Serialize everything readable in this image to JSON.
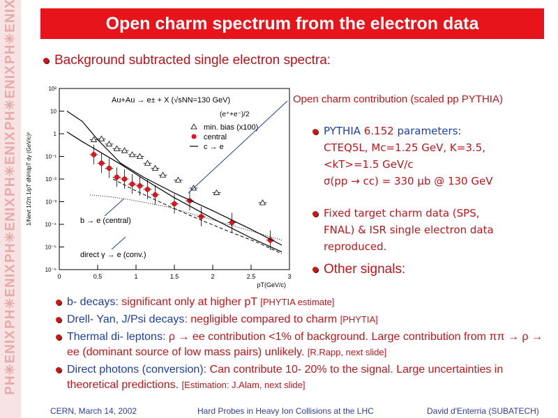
{
  "sidebar": {
    "brand_text": "PH✳ENIX"
  },
  "title": "Open charm spectrum from the electron data",
  "subtitle": "Background subtracted single electron spectra:",
  "plot_annotation": "Open charm contribution (scaled pp PYTHIA)",
  "pythia": {
    "line1_a": "PYTHIA ",
    "line1_b": "6.152",
    "line1_c": " parameters:",
    "line2": "CTEQ5L, Mc=1.25 GeV, K=3.5,",
    "line3": "<kT>=1.5 GeV/c",
    "line4": "σ(pp → cc) = 330 μb @ 130 GeV"
  },
  "fixed_target": {
    "line1": "Fixed target charm data (SPS,",
    "line2": "FNAL) & ISR single electron data",
    "line3": "reproduced."
  },
  "other_signals": "Other signals:",
  "items": [
    {
      "blue": "b- decays",
      "text": ": significant only at higher pT ",
      "note": "[PHYTIA estimate]"
    },
    {
      "blue": "Drell- Yan, J/Psi decays",
      "text": ": negligible compared to charm ",
      "note": "[PHYTIA]"
    },
    {
      "blue": "Thermal di- leptons",
      "text": ": ρ → ee contribution <1% of background. Large contribution from ππ → ρ → ee (dominant source of low mass pairs) unlikely. ",
      "note": "[R.Rapp, next slide]"
    },
    {
      "blue": "Direct photons (conversion)",
      "text": ": Can contribute 10- 20% to the signal. Large uncertainties in theoretical predictions. ",
      "note": "[Estimation: J.Alam, next slide]"
    }
  ],
  "footer": {
    "left": "CERN, March 14, 2002",
    "center": "Hard Probes in Heavy Ion Collisions at the LHC",
    "right": "David d'Enterria (SUBATECH)"
  },
  "chart_data": {
    "type": "scatter",
    "title": "Au+Au → e± + X (√sNN=130 GeV)",
    "ylabel": "1/Nevt 1/2π 1/pT dN²/dpT dy (GeV/c)²",
    "xlabel": "pT(GeV/c)",
    "xlim": [
      0,
      3
    ],
    "ylim_log10": [
      -6,
      2
    ],
    "log_y": true,
    "x_ticks": [
      {
        "v": 0,
        "t": "0"
      },
      {
        "v": 0.5,
        "t": "0.5"
      },
      {
        "v": 1,
        "t": "1"
      },
      {
        "v": 1.5,
        "t": "1.5"
      },
      {
        "v": 2,
        "t": "2"
      },
      {
        "v": 2.5,
        "t": "2.5"
      },
      {
        "v": 3,
        "t": "3"
      }
    ],
    "y_ticks": [
      {
        "e": 2,
        "t": "10²"
      },
      {
        "e": 1,
        "t": "10"
      },
      {
        "e": 0,
        "t": "1"
      },
      {
        "e": -1,
        "t": "10⁻¹"
      },
      {
        "e": -2,
        "t": "10⁻²"
      },
      {
        "e": -3,
        "t": "10⁻³"
      },
      {
        "e": -4,
        "t": "10⁻⁴"
      },
      {
        "e": -5,
        "t": "10⁻⁵"
      },
      {
        "e": -6,
        "t": "10⁻⁶"
      }
    ],
    "legend": {
      "header": "(e⁺+e⁻)/2",
      "entries": [
        "min. bias (x100)",
        "central",
        "c → e"
      ]
    },
    "series": [
      {
        "name": "min. bias (x100)",
        "marker": "open-triangle",
        "x": [
          0.45,
          0.55,
          0.65,
          0.75,
          0.85,
          0.95,
          1.05,
          1.15,
          1.25,
          1.35,
          1.55,
          1.75,
          2.05,
          2.65
        ],
        "y": [
          0.55,
          0.6,
          0.35,
          0.22,
          0.18,
          0.12,
          0.1,
          0.05,
          0.03,
          0.015,
          0.009,
          0.004,
          0.0025,
          0.0009
        ]
      },
      {
        "name": "central",
        "marker": "filled-circle",
        "x": [
          0.45,
          0.55,
          0.65,
          0.75,
          0.85,
          0.95,
          1.05,
          1.15,
          1.25,
          1.5,
          1.7,
          1.85,
          2.25,
          2.75
        ],
        "y": [
          0.12,
          0.05,
          0.03,
          0.012,
          0.01,
          0.006,
          0.005,
          0.0035,
          0.002,
          0.0008,
          0.0011,
          0.00022,
          0.00012,
          2e-05
        ]
      },
      {
        "name": "c → e",
        "style": "solid",
        "x": [
          0.1,
          0.3,
          0.5,
          0.8,
          1.1,
          1.5,
          2.0,
          2.5,
          2.9
        ],
        "y": [
          1.2,
          0.45,
          0.18,
          0.045,
          0.01,
          0.0015,
          0.00018,
          2.5e-05,
          6e-06
        ]
      },
      {
        "name": "curve-2",
        "style": "solid",
        "x": [
          0.1,
          0.3,
          0.5,
          0.8,
          1.1,
          1.5,
          2.0,
          2.5,
          2.9
        ],
        "y": [
          10,
          3.5,
          0.55,
          0.05,
          0.012,
          0.0024,
          0.0004,
          6e-05,
          1.2e-05
        ]
      },
      {
        "name": "b → e",
        "style": "dotted",
        "x": [
          0.4,
          0.7,
          1.0,
          1.4,
          1.8,
          2.2,
          2.6,
          2.9
        ],
        "y": [
          0.002,
          0.0016,
          0.0011,
          0.0006,
          0.00025,
          0.0001,
          4e-05,
          2e-05
        ]
      },
      {
        "name": "direct γ → e",
        "style": "dashed",
        "x": [
          0.7,
          1.0,
          1.4,
          1.8,
          2.2,
          2.6,
          2.9
        ],
        "y": [
          0.01,
          0.003,
          0.0007,
          0.00018,
          5e-05,
          1.5e-05,
          5e-06
        ]
      }
    ],
    "annotations": [
      {
        "text": "b → e (central)"
      },
      {
        "text": "direct γ → e (conv.)"
      }
    ]
  }
}
